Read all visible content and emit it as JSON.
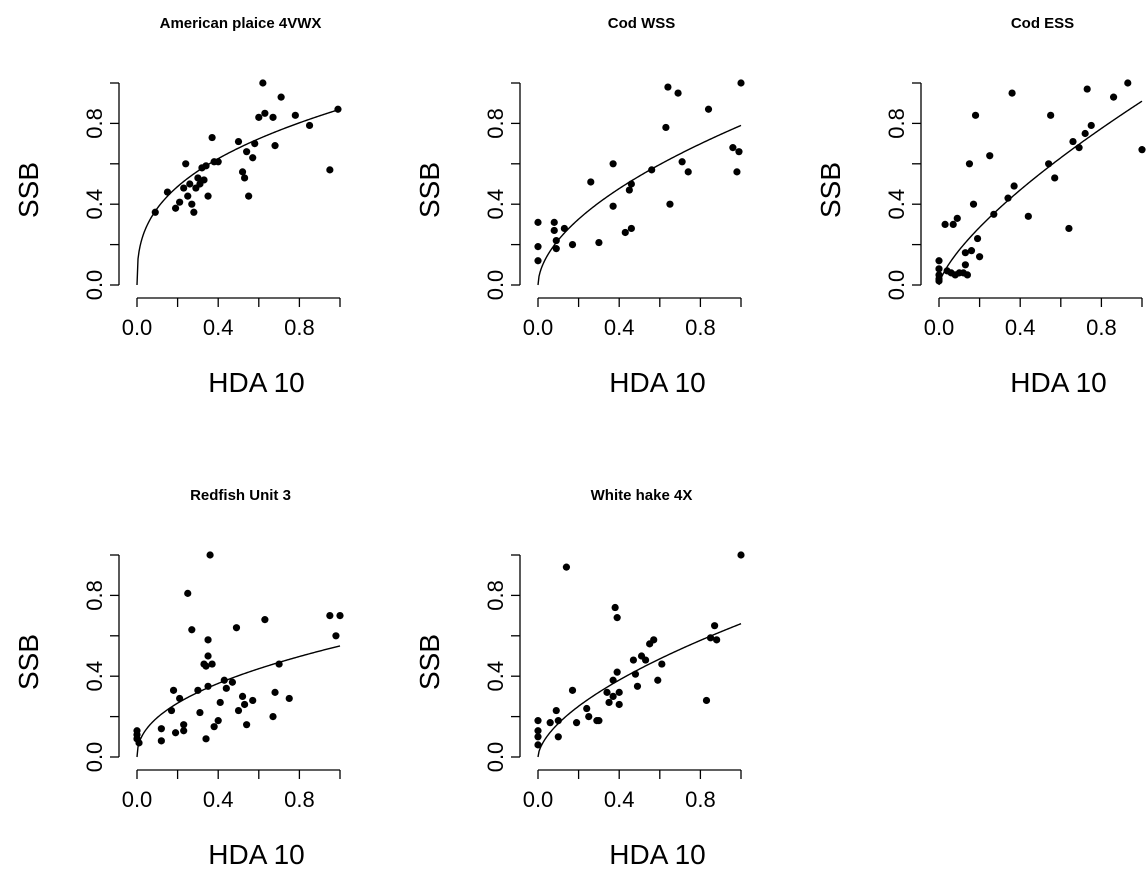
{
  "chart_data": [
    {
      "type": "scatter",
      "title": "American plaice 4VWX",
      "xlabel": "HDA 10",
      "ylabel": "SSB",
      "xlim": [
        0,
        1
      ],
      "ylim": [
        0,
        1
      ],
      "x_ticks": [
        "0.0",
        "0.4",
        "0.8"
      ],
      "y_ticks": [
        "0.0",
        "0.4",
        "0.8"
      ],
      "fit": {
        "a": 0.87,
        "b": 0.36
      },
      "points": [
        [
          0.09,
          0.36
        ],
        [
          0.15,
          0.46
        ],
        [
          0.19,
          0.38
        ],
        [
          0.21,
          0.41
        ],
        [
          0.23,
          0.48
        ],
        [
          0.24,
          0.6
        ],
        [
          0.25,
          0.44
        ],
        [
          0.26,
          0.5
        ],
        [
          0.27,
          0.4
        ],
        [
          0.28,
          0.36
        ],
        [
          0.29,
          0.48
        ],
        [
          0.3,
          0.53
        ],
        [
          0.31,
          0.5
        ],
        [
          0.32,
          0.58
        ],
        [
          0.33,
          0.52
        ],
        [
          0.34,
          0.59
        ],
        [
          0.35,
          0.44
        ],
        [
          0.37,
          0.73
        ],
        [
          0.38,
          0.61
        ],
        [
          0.4,
          0.61
        ],
        [
          0.5,
          0.71
        ],
        [
          0.52,
          0.56
        ],
        [
          0.53,
          0.53
        ],
        [
          0.54,
          0.66
        ],
        [
          0.55,
          0.44
        ],
        [
          0.57,
          0.63
        ],
        [
          0.58,
          0.7
        ],
        [
          0.6,
          0.83
        ],
        [
          0.62,
          1.0
        ],
        [
          0.63,
          0.85
        ],
        [
          0.67,
          0.83
        ],
        [
          0.68,
          0.69
        ],
        [
          0.71,
          0.93
        ],
        [
          0.78,
          0.84
        ],
        [
          0.85,
          0.79
        ],
        [
          0.95,
          0.57
        ],
        [
          0.99,
          0.87
        ]
      ]
    },
    {
      "type": "scatter",
      "title": "Cod WSS",
      "xlabel": "HDA 10",
      "ylabel": "SSB",
      "xlim": [
        0,
        1
      ],
      "ylim": [
        0,
        1
      ],
      "x_ticks": [
        "0.0",
        "0.4",
        "0.8"
      ],
      "y_ticks": [
        "0.0",
        "0.4",
        "0.8"
      ],
      "fit": {
        "a": 0.79,
        "b": 0.55
      },
      "points": [
        [
          0.0,
          0.31
        ],
        [
          0.0,
          0.19
        ],
        [
          0.0,
          0.12
        ],
        [
          0.08,
          0.31
        ],
        [
          0.08,
          0.27
        ],
        [
          0.09,
          0.22
        ],
        [
          0.09,
          0.18
        ],
        [
          0.13,
          0.28
        ],
        [
          0.17,
          0.2
        ],
        [
          0.26,
          0.51
        ],
        [
          0.3,
          0.21
        ],
        [
          0.37,
          0.6
        ],
        [
          0.37,
          0.39
        ],
        [
          0.43,
          0.26
        ],
        [
          0.45,
          0.47
        ],
        [
          0.46,
          0.28
        ],
        [
          0.46,
          0.5
        ],
        [
          0.56,
          0.57
        ],
        [
          0.63,
          0.78
        ],
        [
          0.64,
          0.98
        ],
        [
          0.65,
          0.4
        ],
        [
          0.69,
          0.95
        ],
        [
          0.71,
          0.61
        ],
        [
          0.74,
          0.56
        ],
        [
          0.84,
          0.87
        ],
        [
          0.96,
          0.68
        ],
        [
          0.98,
          0.56
        ],
        [
          0.99,
          0.66
        ],
        [
          1.0,
          1.0
        ]
      ]
    },
    {
      "type": "scatter",
      "title": "Cod ESS",
      "xlabel": "HDA 10",
      "ylabel": "SSB",
      "xlim": [
        0,
        1
      ],
      "ylim": [
        0,
        1
      ],
      "x_ticks": [
        "0.0",
        "0.4",
        "0.8"
      ],
      "y_ticks": [
        "0.0",
        "0.4",
        "0.8"
      ],
      "fit": {
        "a": 0.91,
        "b": 0.72
      },
      "points": [
        [
          0.0,
          0.12
        ],
        [
          0.0,
          0.08
        ],
        [
          0.0,
          0.05
        ],
        [
          0.0,
          0.03
        ],
        [
          0.0,
          0.02
        ],
        [
          0.03,
          0.3
        ],
        [
          0.04,
          0.07
        ],
        [
          0.06,
          0.06
        ],
        [
          0.07,
          0.3
        ],
        [
          0.08,
          0.05
        ],
        [
          0.09,
          0.33
        ],
        [
          0.1,
          0.06
        ],
        [
          0.12,
          0.06
        ],
        [
          0.13,
          0.1
        ],
        [
          0.13,
          0.16
        ],
        [
          0.14,
          0.05
        ],
        [
          0.15,
          0.6
        ],
        [
          0.16,
          0.17
        ],
        [
          0.17,
          0.4
        ],
        [
          0.18,
          0.84
        ],
        [
          0.19,
          0.23
        ],
        [
          0.2,
          0.14
        ],
        [
          0.25,
          0.64
        ],
        [
          0.27,
          0.35
        ],
        [
          0.34,
          0.43
        ],
        [
          0.36,
          0.95
        ],
        [
          0.37,
          0.49
        ],
        [
          0.44,
          0.34
        ],
        [
          0.54,
          0.6
        ],
        [
          0.55,
          0.84
        ],
        [
          0.57,
          0.53
        ],
        [
          0.64,
          0.28
        ],
        [
          0.66,
          0.71
        ],
        [
          0.69,
          0.68
        ],
        [
          0.72,
          0.75
        ],
        [
          0.73,
          0.97
        ],
        [
          0.75,
          0.79
        ],
        [
          0.86,
          0.93
        ],
        [
          0.93,
          1.0
        ],
        [
          1.0,
          0.67
        ]
      ]
    },
    {
      "type": "scatter",
      "title": "Redfish Unit 3",
      "xlabel": "HDA 10",
      "ylabel": "SSB",
      "xlim": [
        0,
        1
      ],
      "ylim": [
        0,
        1
      ],
      "x_ticks": [
        "0.0",
        "0.4",
        "0.8"
      ],
      "y_ticks": [
        "0.0",
        "0.4",
        "0.8"
      ],
      "fit": {
        "a": 0.55,
        "b": 0.45
      },
      "points": [
        [
          0.0,
          0.13
        ],
        [
          0.0,
          0.11
        ],
        [
          0.0,
          0.09
        ],
        [
          0.01,
          0.07
        ],
        [
          0.12,
          0.08
        ],
        [
          0.12,
          0.14
        ],
        [
          0.17,
          0.23
        ],
        [
          0.18,
          0.33
        ],
        [
          0.19,
          0.12
        ],
        [
          0.21,
          0.29
        ],
        [
          0.23,
          0.16
        ],
        [
          0.23,
          0.13
        ],
        [
          0.25,
          0.81
        ],
        [
          0.27,
          0.63
        ],
        [
          0.3,
          0.33
        ],
        [
          0.31,
          0.22
        ],
        [
          0.33,
          0.46
        ],
        [
          0.34,
          0.45
        ],
        [
          0.34,
          0.09
        ],
        [
          0.35,
          0.58
        ],
        [
          0.35,
          0.5
        ],
        [
          0.35,
          0.35
        ],
        [
          0.36,
          1.0
        ],
        [
          0.37,
          0.46
        ],
        [
          0.38,
          0.15
        ],
        [
          0.4,
          0.18
        ],
        [
          0.41,
          0.27
        ],
        [
          0.43,
          0.38
        ],
        [
          0.44,
          0.34
        ],
        [
          0.47,
          0.37
        ],
        [
          0.49,
          0.64
        ],
        [
          0.5,
          0.23
        ],
        [
          0.52,
          0.3
        ],
        [
          0.53,
          0.26
        ],
        [
          0.54,
          0.16
        ],
        [
          0.57,
          0.28
        ],
        [
          0.63,
          0.68
        ],
        [
          0.67,
          0.2
        ],
        [
          0.68,
          0.32
        ],
        [
          0.7,
          0.46
        ],
        [
          0.75,
          0.29
        ],
        [
          0.95,
          0.7
        ],
        [
          0.98,
          0.6
        ],
        [
          1.0,
          0.7
        ]
      ]
    },
    {
      "type": "scatter",
      "title": "White hake 4X",
      "xlabel": "HDA 10",
      "ylabel": "SSB",
      "xlim": [
        0,
        1
      ],
      "ylim": [
        0,
        1
      ],
      "x_ticks": [
        "0.0",
        "0.4",
        "0.8"
      ],
      "y_ticks": [
        "0.0",
        "0.4",
        "0.8"
      ],
      "fit": {
        "a": 0.66,
        "b": 0.6
      },
      "points": [
        [
          0.0,
          0.18
        ],
        [
          0.0,
          0.13
        ],
        [
          0.0,
          0.1
        ],
        [
          0.0,
          0.06
        ],
        [
          0.06,
          0.17
        ],
        [
          0.09,
          0.23
        ],
        [
          0.1,
          0.1
        ],
        [
          0.1,
          0.18
        ],
        [
          0.14,
          0.94
        ],
        [
          0.17,
          0.33
        ],
        [
          0.19,
          0.17
        ],
        [
          0.24,
          0.24
        ],
        [
          0.25,
          0.2
        ],
        [
          0.29,
          0.18
        ],
        [
          0.3,
          0.18
        ],
        [
          0.34,
          0.32
        ],
        [
          0.35,
          0.27
        ],
        [
          0.37,
          0.38
        ],
        [
          0.37,
          0.3
        ],
        [
          0.38,
          0.74
        ],
        [
          0.39,
          0.69
        ],
        [
          0.39,
          0.42
        ],
        [
          0.4,
          0.32
        ],
        [
          0.4,
          0.26
        ],
        [
          0.47,
          0.48
        ],
        [
          0.48,
          0.41
        ],
        [
          0.49,
          0.35
        ],
        [
          0.51,
          0.5
        ],
        [
          0.53,
          0.48
        ],
        [
          0.55,
          0.56
        ],
        [
          0.57,
          0.58
        ],
        [
          0.59,
          0.38
        ],
        [
          0.61,
          0.46
        ],
        [
          0.83,
          0.28
        ],
        [
          0.85,
          0.59
        ],
        [
          0.87,
          0.65
        ],
        [
          0.88,
          0.58
        ],
        [
          1.0,
          1.0
        ]
      ]
    }
  ]
}
